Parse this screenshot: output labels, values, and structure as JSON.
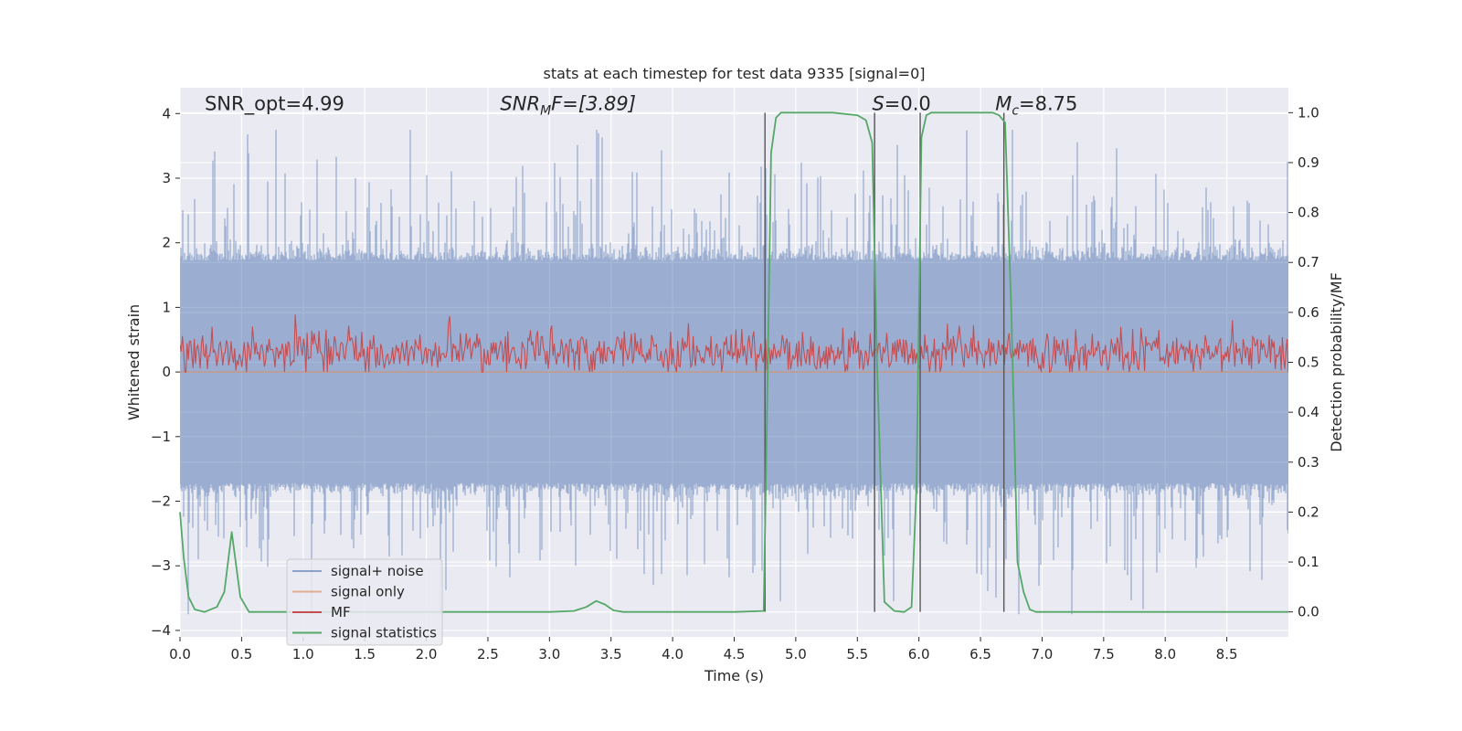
{
  "chart_data": {
    "type": "line",
    "title": "stats at each timestep for test data 9335 [signal=0]",
    "xlabel": "Time (s)",
    "ylabel": "Whitened strain",
    "ylabel_right": "Detection probability/MF",
    "xlim": [
      0,
      9
    ],
    "ylim": [
      -4.1,
      4.4
    ],
    "ylim_right": [
      -0.05,
      1.05
    ],
    "x_ticks": [
      0.0,
      0.5,
      1.0,
      1.5,
      2.0,
      2.5,
      3.0,
      3.5,
      4.0,
      4.5,
      5.0,
      5.5,
      6.0,
      6.5,
      7.0,
      7.5,
      8.0,
      8.5
    ],
    "x_tick_labels": [
      "0.0",
      "0.5",
      "1.0",
      "1.5",
      "2.0",
      "2.5",
      "3.0",
      "3.5",
      "4.0",
      "4.5",
      "5.0",
      "5.5",
      "6.0",
      "6.5",
      "7.0",
      "7.5",
      "8.0",
      "8.5"
    ],
    "y_ticks": [
      -4,
      -3,
      -2,
      -1,
      0,
      1,
      2,
      3,
      4
    ],
    "y_tick_labels": [
      "−4",
      "−3",
      "−2",
      "−1",
      "0",
      "1",
      "2",
      "3",
      "4"
    ],
    "y_right_ticks": [
      0.0,
      0.1,
      0.2,
      0.3,
      0.4,
      0.5,
      0.6,
      0.7,
      0.8,
      0.9,
      1.0
    ],
    "y_right_tick_labels": [
      "0.0",
      "0.1",
      "0.2",
      "0.3",
      "0.4",
      "0.5",
      "0.6",
      "0.7",
      "0.8",
      "0.9",
      "1.0"
    ],
    "grid": true,
    "legend_position": "lower-left",
    "series": [
      {
        "name": "signal+ noise",
        "color": "#4c72b0",
        "axis": "left",
        "kind": "whitened strain noise trace, amplitude mostly within about ±1.8, peaks to about ±3.5",
        "approx_envelope": [
          1.8,
          -1.8
        ]
      },
      {
        "name": "signal only",
        "color": "#dd8452",
        "axis": "left",
        "values": "flat at 0"
      },
      {
        "name": "MF",
        "color": "#c44e52",
        "axis": "left",
        "approx_range": [
          0.0,
          0.9
        ]
      },
      {
        "name": "signal statistics",
        "color": "#55a868",
        "axis": "right",
        "x": [
          0.0,
          0.03,
          0.07,
          0.12,
          0.2,
          0.3,
          0.36,
          0.42,
          0.49,
          0.56,
          1.0,
          2.0,
          3.0,
          3.2,
          3.3,
          3.38,
          3.45,
          3.52,
          3.6,
          4.0,
          4.5,
          4.74,
          4.77,
          4.8,
          4.84,
          4.88,
          5.0,
          5.3,
          5.5,
          5.57,
          5.62,
          5.66,
          5.72,
          5.8,
          5.88,
          5.94,
          5.98,
          6.02,
          6.06,
          6.1,
          6.3,
          6.6,
          6.65,
          6.7,
          6.75,
          6.8,
          6.85,
          6.9,
          6.95,
          7.0,
          8.0,
          9.0
        ],
        "y": [
          0.2,
          0.11,
          0.03,
          0.005,
          0.0,
          0.01,
          0.04,
          0.16,
          0.03,
          0.0,
          0.0,
          0.0,
          0.0,
          0.002,
          0.01,
          0.022,
          0.015,
          0.003,
          0.0,
          0.0,
          0.0,
          0.002,
          0.45,
          0.92,
          0.99,
          1.0,
          1.0,
          1.0,
          0.995,
          0.985,
          0.94,
          0.5,
          0.02,
          0.002,
          0.0,
          0.01,
          0.25,
          0.95,
          0.995,
          1.0,
          1.0,
          1.0,
          0.995,
          0.98,
          0.6,
          0.1,
          0.04,
          0.005,
          0.0,
          0.0,
          0.0,
          0.0
        ]
      }
    ],
    "vertical_lines_x": [
      4.75,
      5.64,
      6.01,
      6.69
    ],
    "annotations": [
      {
        "text": "SNR_opt=4.99",
        "x": 0.2,
        "y": 4.05,
        "style": "normal"
      },
      {
        "main": "SNR",
        "sub": "M",
        "rest": "F=[3.89]",
        "x": 2.6,
        "y": 4.05,
        "style": "italic"
      },
      {
        "main": "S",
        "rest": "=0.0",
        "x": 5.62,
        "y": 4.05,
        "style": "italic-first"
      },
      {
        "main": "M",
        "sub": "c",
        "rest": "=8.75",
        "x": 6.62,
        "y": 4.05,
        "style": "italic-first"
      }
    ],
    "colors": {
      "background": "#eaeaf2",
      "grid": "#ffffff",
      "vline": "#555555"
    }
  }
}
